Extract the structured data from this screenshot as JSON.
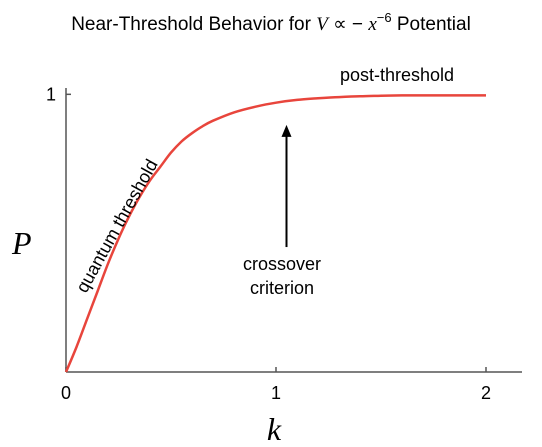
{
  "chart_data": {
    "type": "line",
    "title": {
      "prefix": "Near-Threshold Behavior for ",
      "math_v": "V",
      "math_prop": " ∝ − ",
      "math_x": "x",
      "exponent": "−6",
      "suffix": " Potential"
    },
    "xlabel": "k",
    "ylabel": "P",
    "xlim": [
      0,
      2.1
    ],
    "ylim": [
      0,
      1.03
    ],
    "x_ticks": [
      {
        "value": 0,
        "label": "0"
      },
      {
        "value": 1,
        "label": "1"
      },
      {
        "value": 2,
        "label": "2"
      }
    ],
    "y_ticks": [
      {
        "value": 1,
        "label": "1"
      }
    ],
    "grid": false,
    "series": [
      {
        "color": "#e8453c",
        "x": [
          0,
          0.05,
          0.1,
          0.15,
          0.2,
          0.25,
          0.3,
          0.35,
          0.4,
          0.45,
          0.5,
          0.55,
          0.6,
          0.65,
          0.7,
          0.8,
          0.9,
          1.0,
          1.1,
          1.2,
          1.3,
          1.4,
          1.5,
          1.6,
          1.8,
          2.0
        ],
        "y": [
          0,
          0.09,
          0.19,
          0.29,
          0.39,
          0.48,
          0.56,
          0.63,
          0.69,
          0.74,
          0.79,
          0.83,
          0.86,
          0.885,
          0.905,
          0.935,
          0.955,
          0.97,
          0.98,
          0.986,
          0.99,
          0.993,
          0.995,
          0.996,
          0.996,
          0.996
        ]
      }
    ],
    "annotations": [
      {
        "id": "quantum-threshold",
        "text": "quantum threshold"
      },
      {
        "id": "post-threshold",
        "text": "post-threshold"
      },
      {
        "id": "crossover",
        "lines": [
          "crossover",
          "criterion"
        ],
        "arrow_x": 1.05,
        "arrow_from_y": 0.45,
        "arrow_to_y": 0.89
      }
    ]
  }
}
